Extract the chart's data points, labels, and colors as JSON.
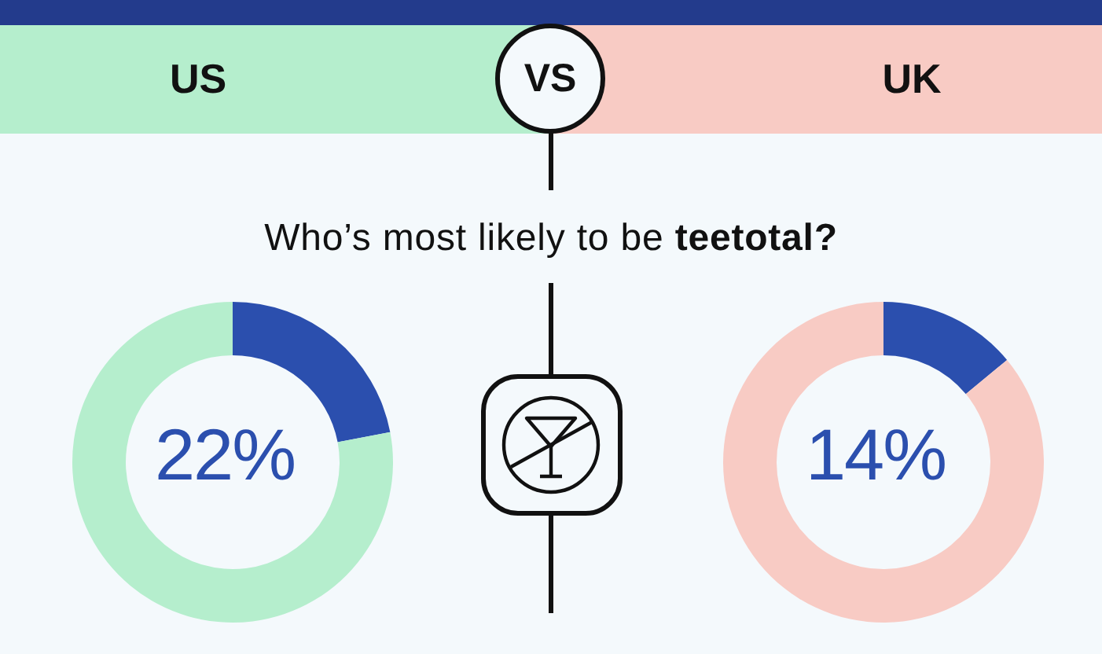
{
  "chart_data": [
    {
      "type": "donut",
      "title": "US",
      "categories": [
        null,
        null
      ],
      "values": [
        22,
        78
      ],
      "colors": [
        "#2b4fae",
        "#b5eecd"
      ],
      "annotations": [
        "22%"
      ]
    },
    {
      "type": "other",
      "title": "Who’s most likely to be teetotal?",
      "annotations": [
        "VS"
      ]
    },
    {
      "type": "donut",
      "title": "UK",
      "categories": [
        null,
        null
      ],
      "values": [
        14,
        86
      ],
      "colors": [
        "#2b4fae",
        "#f8cbc4"
      ],
      "annotations": [
        "14%"
      ]
    }
  ]
}
